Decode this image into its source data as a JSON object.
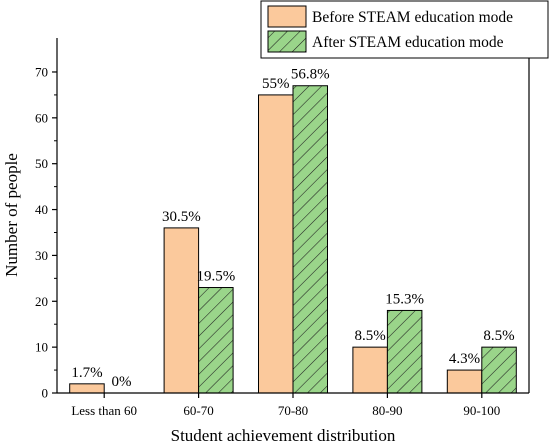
{
  "chart_data": {
    "type": "bar",
    "title": "",
    "xlabel": "Student achievement distribution",
    "ylabel": "Number of people",
    "categories": [
      "Less than 60",
      "60-70",
      "70-80",
      "80-90",
      "90-100"
    ],
    "ylim": [
      0,
      75
    ],
    "yticks": [
      0,
      10,
      20,
      30,
      40,
      50,
      60,
      70
    ],
    "grid": false,
    "legend_position": "top-right",
    "series": [
      {
        "name": "Before STEAM education mode",
        "color": "#fbc99c",
        "pattern": "solid",
        "values": [
          2,
          36,
          65,
          10,
          5
        ],
        "labels": [
          "1.7%",
          "30.5%",
          "55%",
          "8.5%",
          "4.3%"
        ]
      },
      {
        "name": "After STEAM education mode",
        "color": "#9ad58a",
        "pattern": "diagonal-hatch",
        "values": [
          0,
          23,
          67,
          18,
          10
        ],
        "labels": [
          "0%",
          "19.5%",
          "56.8%",
          "15.3%",
          "8.5%"
        ]
      }
    ]
  }
}
